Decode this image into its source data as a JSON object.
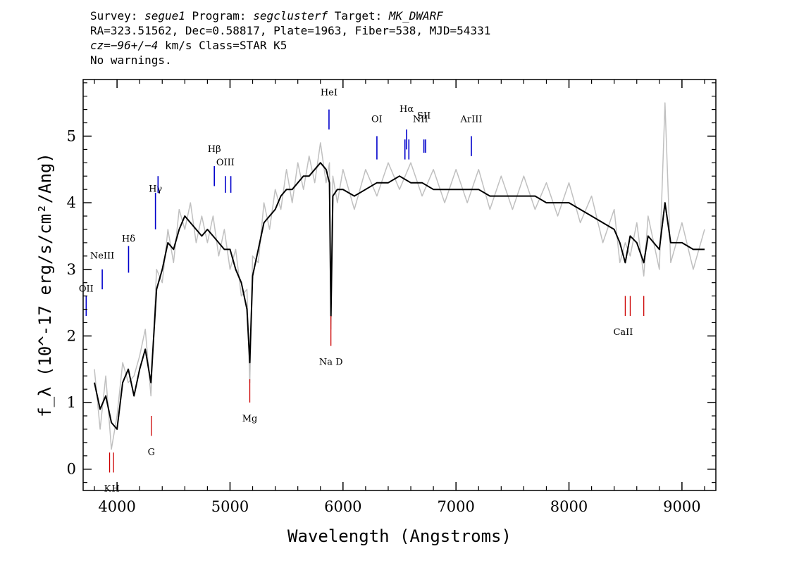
{
  "header": {
    "line1": {
      "survey_label": "Survey: ",
      "survey": "segue1",
      "program_label": " Program: ",
      "program": "segclusterf",
      "target_label": " Target: ",
      "target": "MK_DWARF"
    },
    "line2": "RA=323.51562, Dec=0.58817, Plate=1963, Fiber=538, MJD=54331",
    "line3": {
      "cz_label": "cz=",
      "cz_value": "−96+/−4",
      "rest": " km/s Class=STAR K5"
    },
    "line4": "No warnings."
  },
  "chart_data": {
    "type": "line",
    "xlabel": "Wavelength (Angstroms)",
    "ylabel": "f_λ (10^-17 erg/s/cm²/Ang)",
    "xlim": [
      3700,
      9300
    ],
    "ylim": [
      -0.32,
      5.85
    ],
    "x_ticks": [
      {
        "value": 4000,
        "label": "4000"
      },
      {
        "value": 5000,
        "label": "5000"
      },
      {
        "value": 6000,
        "label": "6000"
      },
      {
        "value": 7000,
        "label": "7000"
      },
      {
        "value": 8000,
        "label": "8000"
      },
      {
        "value": 9000,
        "label": "9000"
      }
    ],
    "y_ticks": [
      {
        "value": 0,
        "label": "0"
      },
      {
        "value": 1,
        "label": "1"
      },
      {
        "value": 2,
        "label": "2"
      },
      {
        "value": 3,
        "label": "3"
      },
      {
        "value": 4,
        "label": "4"
      },
      {
        "value": 5,
        "label": "5"
      }
    ],
    "series": [
      {
        "color": "#000000",
        "x": [
          3800,
          3850,
          3900,
          3950,
          4000,
          4050,
          4100,
          4150,
          4200,
          4250,
          4300,
          4350,
          4400,
          4450,
          4500,
          4550,
          4600,
          4650,
          4700,
          4750,
          4800,
          4850,
          4900,
          4950,
          5000,
          5050,
          5100,
          5150,
          5175,
          5200,
          5250,
          5300,
          5350,
          5400,
          5450,
          5500,
          5550,
          5600,
          5650,
          5700,
          5750,
          5800,
          5850,
          5880,
          5893,
          5910,
          5950,
          6000,
          6100,
          6200,
          6300,
          6400,
          6500,
          6600,
          6700,
          6800,
          6900,
          7000,
          7100,
          7200,
          7300,
          7400,
          7500,
          7600,
          7700,
          7800,
          7900,
          8000,
          8100,
          8200,
          8300,
          8400,
          8450,
          8498,
          8542,
          8600,
          8662,
          8700,
          8800,
          8850,
          8900,
          9000,
          9100,
          9200
        ],
        "y": [
          1.3,
          0.9,
          1.1,
          0.7,
          0.6,
          1.3,
          1.5,
          1.1,
          1.5,
          1.8,
          1.3,
          2.7,
          3.0,
          3.4,
          3.3,
          3.6,
          3.8,
          3.7,
          3.6,
          3.5,
          3.6,
          3.5,
          3.4,
          3.3,
          3.3,
          3.0,
          2.8,
          2.4,
          1.6,
          2.9,
          3.3,
          3.7,
          3.8,
          3.9,
          4.1,
          4.2,
          4.2,
          4.3,
          4.4,
          4.4,
          4.5,
          4.6,
          4.5,
          4.3,
          2.3,
          4.1,
          4.2,
          4.2,
          4.1,
          4.2,
          4.3,
          4.3,
          4.4,
          4.3,
          4.3,
          4.2,
          4.2,
          4.2,
          4.2,
          4.2,
          4.1,
          4.1,
          4.1,
          4.1,
          4.1,
          4.0,
          4.0,
          4.0,
          3.9,
          3.8,
          3.7,
          3.6,
          3.4,
          3.1,
          3.5,
          3.4,
          3.1,
          3.5,
          3.3,
          4.0,
          3.4,
          3.4,
          3.3,
          3.3
        ]
      },
      {
        "color": "#c0c0c0",
        "x": [
          3800,
          3850,
          3900,
          3950,
          4000,
          4050,
          4100,
          4150,
          4200,
          4250,
          4300,
          4350,
          4400,
          4450,
          4500,
          4550,
          4600,
          4650,
          4700,
          4750,
          4800,
          4850,
          4900,
          4950,
          5000,
          5050,
          5100,
          5150,
          5175,
          5200,
          5250,
          5300,
          5350,
          5400,
          5450,
          5500,
          5550,
          5600,
          5650,
          5700,
          5750,
          5800,
          5850,
          5880,
          5893,
          5910,
          5950,
          6000,
          6100,
          6200,
          6300,
          6400,
          6500,
          6600,
          6700,
          6800,
          6900,
          7000,
          7100,
          7200,
          7300,
          7400,
          7500,
          7600,
          7700,
          7800,
          7900,
          8000,
          8100,
          8200,
          8300,
          8400,
          8450,
          8498,
          8542,
          8600,
          8662,
          8700,
          8800,
          8850,
          8900,
          9000,
          9100,
          9200
        ],
        "y": [
          1.5,
          0.6,
          1.4,
          0.3,
          0.8,
          1.6,
          1.3,
          1.4,
          1.7,
          2.1,
          1.1,
          3.0,
          2.8,
          3.6,
          3.1,
          3.9,
          3.6,
          4.0,
          3.4,
          3.8,
          3.4,
          3.8,
          3.2,
          3.6,
          3.0,
          3.3,
          2.6,
          2.7,
          1.3,
          3.2,
          3.1,
          4.0,
          3.6,
          4.2,
          3.9,
          4.5,
          4.0,
          4.6,
          4.2,
          4.7,
          4.3,
          4.9,
          4.3,
          4.6,
          2.1,
          4.4,
          4.0,
          4.5,
          3.9,
          4.5,
          4.1,
          4.6,
          4.2,
          4.6,
          4.1,
          4.5,
          4.0,
          4.5,
          4.0,
          4.5,
          3.9,
          4.4,
          3.9,
          4.4,
          3.9,
          4.3,
          3.8,
          4.3,
          3.7,
          4.1,
          3.4,
          3.9,
          3.1,
          3.4,
          3.2,
          3.7,
          2.9,
          3.8,
          3.0,
          5.5,
          3.1,
          3.7,
          3.0,
          3.6
        ]
      }
    ],
    "emission_lines": [
      {
        "label": "HeI",
        "x": 5876
      },
      {
        "label": "OI",
        "x": 6300
      },
      {
        "label": "NII",
        "x": 6548
      },
      {
        "label": "Hα",
        "x": 6563
      },
      {
        "label": "NII",
        "x": 6583
      },
      {
        "label": "SII",
        "x": 6716
      },
      {
        "label": "SII",
        "x": 6731
      },
      {
        "label": "ArIII",
        "x": 7136
      },
      {
        "label": "Hβ",
        "x": 4861
      },
      {
        "label": "OIII",
        "x": 4959
      },
      {
        "label": "OIII",
        "x": 5007
      },
      {
        "label": "Hγ",
        "x": 4340
      },
      {
        "label": "OIII",
        "x": 4363
      },
      {
        "label": "Hδ",
        "x": 4102
      },
      {
        "label": "NeIII",
        "x": 3869
      },
      {
        "label": "OII",
        "x": 3727
      }
    ],
    "absorption_lines": [
      {
        "label": "K",
        "x": 3934
      },
      {
        "label": "H",
        "x": 3969
      },
      {
        "label": "G",
        "x": 4304
      },
      {
        "label": "Mg",
        "x": 5175
      },
      {
        "label": "Na D",
        "x": 5893
      },
      {
        "label": "CaII",
        "x": 8498
      },
      {
        "label": "CaII",
        "x": 8542
      },
      {
        "label": "CaII",
        "x": 8662
      }
    ],
    "colors": {
      "emission": "#0000cc",
      "absorption": "#cc0000"
    }
  }
}
